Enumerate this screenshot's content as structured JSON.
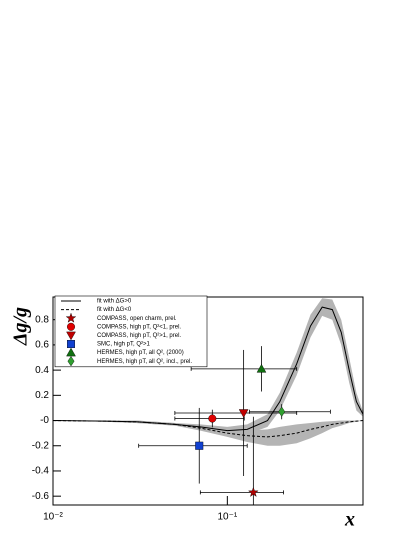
{
  "chart_data": {
    "type": "scatter",
    "y_label": "Δg/g",
    "x_label": "x",
    "xlim": [
      0.01,
      0.6
    ],
    "ylim": [
      -0.67,
      0.98
    ],
    "log_x": true,
    "xticks": [
      {
        "value": 0.01,
        "label": "10⁻²"
      },
      {
        "value": 0.1,
        "label": "10⁻¹"
      }
    ],
    "yticks": [
      0.8,
      0.6,
      0.4,
      0.2,
      {
        "value": 0,
        "label": "-0"
      },
      -0.2,
      -0.4,
      -0.6
    ],
    "legend": "top-left",
    "series": [
      {
        "name": "fit with ΔG>0",
        "line": "solid",
        "color": "#000000",
        "band_color": "#b4b4b4",
        "x": [
          0.01,
          0.02,
          0.03,
          0.05,
          0.07,
          0.1,
          0.13,
          0.17,
          0.2,
          0.25,
          0.3,
          0.35,
          0.4,
          0.45,
          0.5,
          0.55,
          0.6
        ],
        "values": [
          0,
          -0.005,
          -0.01,
          -0.03,
          -0.05,
          -0.08,
          -0.07,
          0.0,
          0.15,
          0.45,
          0.75,
          0.9,
          0.88,
          0.7,
          0.4,
          0.15,
          0.05
        ],
        "band_low": [
          0,
          -0.01,
          -0.02,
          -0.04,
          -0.07,
          -0.11,
          -0.11,
          -0.05,
          0.08,
          0.36,
          0.66,
          0.83,
          0.8,
          0.6,
          0.3,
          0.08,
          0.03
        ],
        "band_high": [
          0,
          0,
          0,
          -0.02,
          -0.03,
          -0.05,
          -0.03,
          0.05,
          0.22,
          0.54,
          0.84,
          0.97,
          0.96,
          0.8,
          0.5,
          0.22,
          0.07
        ]
      },
      {
        "name": "fit with ΔG<0",
        "line": "dashed",
        "color": "#000000",
        "band_color": "#b4b4b4",
        "x": [
          0.01,
          0.02,
          0.03,
          0.05,
          0.07,
          0.1,
          0.13,
          0.17,
          0.2,
          0.25,
          0.3,
          0.35,
          0.4,
          0.45,
          0.5,
          0.55,
          0.6
        ],
        "values": [
          0,
          -0.005,
          -0.01,
          -0.03,
          -0.06,
          -0.1,
          -0.12,
          -0.13,
          -0.12,
          -0.1,
          -0.07,
          -0.05,
          -0.03,
          -0.02,
          -0.01,
          -0.005,
          0
        ],
        "band_low": [
          0,
          -0.01,
          -0.02,
          -0.04,
          -0.08,
          -0.13,
          -0.17,
          -0.2,
          -0.2,
          -0.18,
          -0.14,
          -0.1,
          -0.06,
          -0.04,
          -0.02,
          -0.01,
          0
        ],
        "band_high": [
          0,
          0,
          0,
          -0.02,
          -0.04,
          -0.07,
          -0.08,
          -0.07,
          -0.05,
          -0.03,
          -0.02,
          -0.01,
          -0.005,
          0,
          0,
          0,
          0
        ]
      },
      {
        "name": "COMPASS, open charm, prel.",
        "marker": "star",
        "color": "#b00000",
        "x": [
          0.141
        ],
        "values": [
          -0.57
        ],
        "yerr": [
          0.6
        ],
        "xlo": [
          0.07
        ],
        "xhi": [
          0.21
        ]
      },
      {
        "name": "COMPASS, high pT, Q²<1, prel.",
        "marker": "circle",
        "color": "#e00000",
        "x": [
          0.082
        ],
        "values": [
          0.016
        ],
        "yerr": [
          0.07
        ],
        "xlo": [
          0.05
        ],
        "xhi": [
          0.125
        ]
      },
      {
        "name": "COMPASS, high pT, Q²>1, prel.",
        "marker": "triangle-down",
        "color": "#c00000",
        "x": [
          0.124
        ],
        "values": [
          0.06
        ],
        "yerr": [
          0.5
        ],
        "xlo": [
          0.05
        ],
        "xhi": [
          0.25
        ]
      },
      {
        "name": "SMC, high pT, Q²>1",
        "marker": "square",
        "color": "#1040d0",
        "x": [
          0.069
        ],
        "values": [
          -0.2
        ],
        "yerr": [
          0.3
        ],
        "xlo": [
          0.031
        ],
        "xhi": [
          0.13
        ]
      },
      {
        "name": "HERMES, high pT, all Q², (2000)",
        "marker": "triangle-up",
        "color": "#107010",
        "x": [
          0.157
        ],
        "values": [
          0.41
        ],
        "yerr": [
          0.18
        ],
        "xlo": [
          0.062
        ],
        "xhi": [
          0.25
        ]
      },
      {
        "name": "HERMES, high pT, all Q², incl., prel.",
        "marker": "diamond",
        "color": "#30a030",
        "x": [
          0.205
        ],
        "values": [
          0.07
        ],
        "yerr": [
          0.06
        ],
        "xlo": [
          0.134
        ],
        "xhi": [
          0.39
        ]
      }
    ]
  }
}
